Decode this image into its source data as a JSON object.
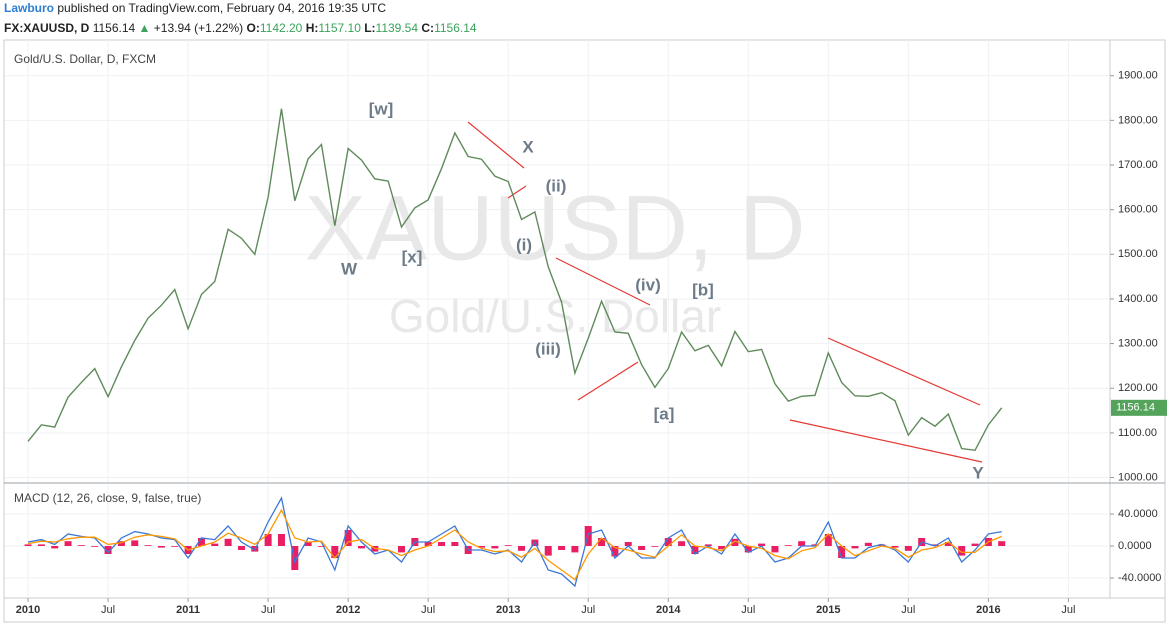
{
  "header": {
    "author": "Lawburo",
    "published": "published on TradingView.com, February 04, 2016 19:35 UTC",
    "symbol": "FX:XAUUSD, D",
    "price": "1156.14",
    "change": "+13.94 (+1.22%)",
    "open_label": "O:",
    "open": "1142.20",
    "high_label": "H:",
    "high": "1157.10",
    "low_label": "L:",
    "low": "1139.54",
    "close_label": "C:",
    "close": "1156.14"
  },
  "chart_data": [
    {
      "type": "line",
      "title": "Gold/U.S. Dollar, D, FXCM",
      "watermark": "XAUUSD, D",
      "watermark_subtitle": "Gold/U.S. Dollar",
      "color": "#5f8a5a",
      "last_value": 1156.14,
      "last_value_color": "#53a35a",
      "x": [
        "2010-01",
        "2010-02",
        "2010-03",
        "2010-04",
        "2010-05",
        "2010-06",
        "2010-07",
        "2010-08",
        "2010-09",
        "2010-10",
        "2010-11",
        "2010-12",
        "2011-01",
        "2011-02",
        "2011-03",
        "2011-04",
        "2011-05",
        "2011-06",
        "2011-07",
        "2011-08",
        "2011-09",
        "2011-10",
        "2011-11",
        "2011-12",
        "2012-01",
        "2012-02",
        "2012-03",
        "2012-04",
        "2012-05",
        "2012-06",
        "2012-07",
        "2012-08",
        "2012-09",
        "2012-10",
        "2012-11",
        "2012-12",
        "2013-01",
        "2013-02",
        "2013-03",
        "2013-04",
        "2013-05",
        "2013-06",
        "2013-07",
        "2013-08",
        "2013-09",
        "2013-10",
        "2013-11",
        "2013-12",
        "2014-01",
        "2014-02",
        "2014-03",
        "2014-04",
        "2014-05",
        "2014-06",
        "2014-07",
        "2014-08",
        "2014-09",
        "2014-10",
        "2014-11",
        "2014-12",
        "2015-01",
        "2015-02",
        "2015-03",
        "2015-04",
        "2015-05",
        "2015-06",
        "2015-07",
        "2015-08",
        "2015-09",
        "2015-10",
        "2015-11",
        "2015-12",
        "2016-01",
        "2016-02"
      ],
      "values": [
        1081,
        1118,
        1113,
        1180,
        1213,
        1244,
        1181,
        1248,
        1307,
        1357,
        1386,
        1421,
        1333,
        1410,
        1439,
        1556,
        1536,
        1500,
        1628,
        1826,
        1620,
        1714,
        1746,
        1564,
        1737,
        1711,
        1669,
        1664,
        1561,
        1604,
        1622,
        1692,
        1772,
        1719,
        1713,
        1675,
        1663,
        1578,
        1595,
        1472,
        1393,
        1234,
        1312,
        1395,
        1326,
        1323,
        1253,
        1202,
        1244,
        1326,
        1284,
        1296,
        1250,
        1327,
        1282,
        1287,
        1210,
        1171,
        1182,
        1184,
        1279,
        1213,
        1183,
        1182,
        1190,
        1172,
        1095,
        1134,
        1115,
        1142,
        1065,
        1061,
        1118,
        1156.14
      ],
      "ylim": [
        990,
        1980
      ],
      "yticks": [
        {
          "value": 1000,
          "label": "1000.00"
        },
        {
          "value": 1100,
          "label": "1100.00"
        },
        {
          "value": 1200,
          "label": "1200.00"
        },
        {
          "value": 1300,
          "label": "1300.00"
        },
        {
          "value": 1400,
          "label": "1400.00"
        },
        {
          "value": 1500,
          "label": "1500.00"
        },
        {
          "value": 1600,
          "label": "1600.00"
        },
        {
          "value": 1700,
          "label": "1700.00"
        },
        {
          "value": 1800,
          "label": "1800.00"
        },
        {
          "value": 1900,
          "label": "1900.00"
        }
      ],
      "xlim": [
        2009.856,
        2016.76
      ],
      "xticks": [
        2010,
        {
          "value": 2010.5,
          "label": "Jul"
        },
        2011,
        {
          "value": 2011.5,
          "label": "Jul"
        },
        2012,
        {
          "value": 2012.5,
          "label": "Jul"
        },
        2013,
        {
          "value": 2013.5,
          "label": "Jul"
        },
        2014,
        {
          "value": 2014.5,
          "label": "Jul"
        },
        2015,
        {
          "value": 2015.5,
          "label": "Jul"
        },
        2016,
        {
          "value": 2016.5,
          "label": "Jul"
        }
      ],
      "grid": true,
      "annotations": [
        "W",
        "[w]",
        "[x]",
        "X",
        "(ii)",
        "(i)",
        "(iii)",
        "(iv)",
        "[b]",
        "[a]",
        "Y"
      ]
    },
    {
      "type": "macd",
      "title": "MACD (12, 26, close, 9, false, true)",
      "macd_color": "#3c78d8",
      "signal_color": "#ff9800",
      "histogram_color": "#e91e63",
      "macd_values": [
        5,
        8,
        2,
        15,
        12,
        10,
        -8,
        10,
        18,
        15,
        10,
        8,
        -15,
        10,
        8,
        25,
        5,
        -5,
        30,
        60,
        -20,
        10,
        5,
        -30,
        25,
        5,
        -10,
        -5,
        -20,
        5,
        5,
        15,
        25,
        -5,
        -5,
        -10,
        -5,
        -20,
        5,
        -30,
        -35,
        -50,
        15,
        20,
        -15,
        0,
        -15,
        -15,
        10,
        20,
        -10,
        0,
        -10,
        15,
        -8,
        0,
        -20,
        -15,
        0,
        0,
        30,
        -15,
        -15,
        -2,
        2,
        -5,
        -20,
        5,
        0,
        10,
        -20,
        -5,
        15,
        18
      ],
      "signal_values": [
        3,
        6,
        5,
        9,
        11,
        11,
        2,
        4,
        11,
        14,
        12,
        9,
        -5,
        0,
        5,
        16,
        10,
        2,
        15,
        45,
        10,
        5,
        6,
        -15,
        5,
        8,
        -3,
        -5,
        -12,
        -5,
        0,
        10,
        20,
        5,
        -3,
        -7,
        -6,
        -14,
        -3,
        -18,
        -30,
        -42,
        -10,
        10,
        -2,
        -5,
        -10,
        -14,
        0,
        14,
        0,
        -2,
        -6,
        6,
        0,
        -3,
        -12,
        -16,
        -6,
        -2,
        15,
        0,
        -12,
        -6,
        0,
        -3,
        -14,
        -5,
        -2,
        5,
        -8,
        -8,
        5,
        12
      ],
      "histogram_values": [
        2,
        2,
        -3,
        6,
        1,
        -1,
        -10,
        6,
        7,
        1,
        -2,
        -1,
        -10,
        10,
        3,
        9,
        -5,
        -7,
        15,
        15,
        -30,
        5,
        -1,
        -15,
        20,
        -3,
        -7,
        0,
        -8,
        10,
        5,
        5,
        5,
        -10,
        -2,
        -3,
        1,
        -6,
        8,
        -12,
        -5,
        -8,
        25,
        10,
        -13,
        5,
        -5,
        -1,
        10,
        6,
        -10,
        2,
        -4,
        9,
        -8,
        3,
        -8,
        1,
        6,
        2,
        15,
        -15,
        -3,
        4,
        2,
        -2,
        -6,
        10,
        2,
        5,
        -12,
        3,
        10,
        6
      ],
      "ylim": [
        -65,
        77.5
      ],
      "yticks": [
        {
          "value": 40,
          "label": "40.0000"
        },
        {
          "value": 0,
          "label": "0.0000"
        },
        {
          "value": -40,
          "label": "-40.0000"
        }
      ],
      "grid": true
    }
  ]
}
